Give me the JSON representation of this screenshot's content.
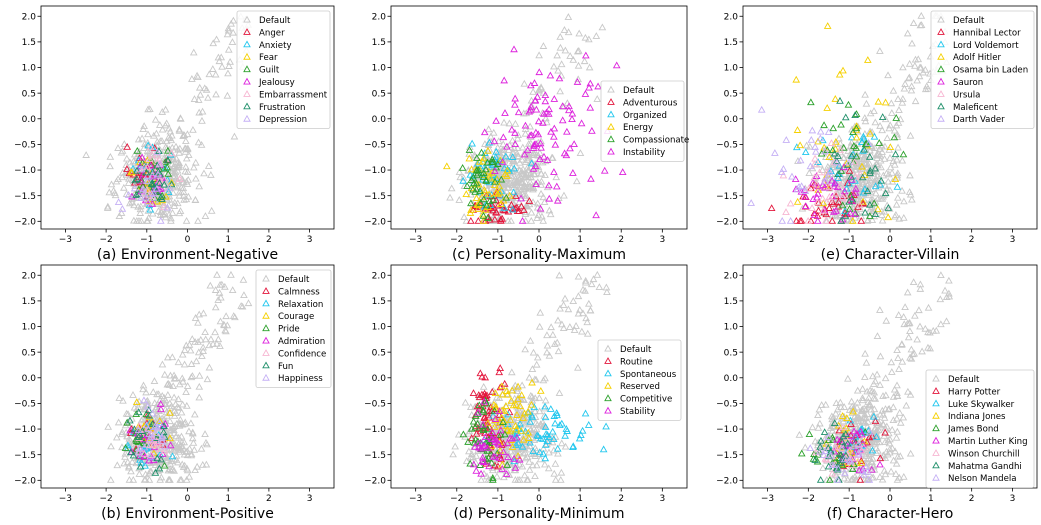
{
  "colors": {
    "Default": "#c8c8c8",
    "red": "#e3173d",
    "cyan": "#22c7ee",
    "yellow": "#f5d000",
    "green": "#2aa02a",
    "magenta": "#dd22dd",
    "pink": "#f7b6d2",
    "teal": "#1f8f6a",
    "lavender": "#c5b0f5"
  },
  "chart_data": [
    {
      "type": "scatter",
      "caption": "(a) Environment-Negative",
      "xlim": [
        -3.6,
        3.6
      ],
      "ylim": [
        -2.15,
        2.2
      ],
      "xticks": [
        -3,
        -2,
        -1,
        0,
        1,
        2,
        3
      ],
      "yticks": [
        -2.0,
        -1.5,
        -1.0,
        -0.5,
        0.0,
        0.5,
        1.0,
        1.5,
        2.0
      ],
      "legend_position": "top-right",
      "series": [
        {
          "name": "Default",
          "color": "Default",
          "count": 420,
          "cx": -0.75,
          "cy": -1.2,
          "sx": 0.5,
          "sy": 0.45
        },
        {
          "name": "Anger",
          "color": "red",
          "count": 22,
          "cx": -1.05,
          "cy": -1.15,
          "sx": 0.22,
          "sy": 0.3
        },
        {
          "name": "Anxiety",
          "color": "cyan",
          "count": 22,
          "cx": -0.95,
          "cy": -1.15,
          "sx": 0.22,
          "sy": 0.3
        },
        {
          "name": "Fear",
          "color": "yellow",
          "count": 22,
          "cx": -0.95,
          "cy": -1.2,
          "sx": 0.22,
          "sy": 0.3
        },
        {
          "name": "Guilt",
          "color": "green",
          "count": 22,
          "cx": -0.85,
          "cy": -1.1,
          "sx": 0.22,
          "sy": 0.3
        },
        {
          "name": "Jealousy",
          "color": "magenta",
          "count": 22,
          "cx": -0.9,
          "cy": -1.15,
          "sx": 0.22,
          "sy": 0.3
        },
        {
          "name": "Embarrassment",
          "color": "pink",
          "count": 22,
          "cx": -0.8,
          "cy": -1.1,
          "sx": 0.22,
          "sy": 0.3
        },
        {
          "name": "Frustration",
          "color": "teal",
          "count": 22,
          "cx": -0.85,
          "cy": -1.2,
          "sx": 0.22,
          "sy": 0.3
        },
        {
          "name": "Depression",
          "color": "lavender",
          "count": 22,
          "cx": -0.95,
          "cy": -1.3,
          "sx": 0.22,
          "sy": 0.3
        }
      ]
    },
    {
      "type": "scatter",
      "caption": "(c) Personality-Maximum",
      "xlim": [
        -3.6,
        3.6
      ],
      "ylim": [
        -2.15,
        2.2
      ],
      "xticks": [
        -3,
        -2,
        -1,
        0,
        1,
        2,
        3
      ],
      "yticks": [
        -2.0,
        -1.5,
        -1.0,
        -0.5,
        0.0,
        0.5,
        1.0,
        1.5,
        2.0
      ],
      "legend_position": "center-right",
      "series": [
        {
          "name": "Default",
          "color": "Default",
          "count": 420,
          "cx": -0.75,
          "cy": -1.2,
          "sx": 0.5,
          "sy": 0.45
        },
        {
          "name": "Adventurous",
          "color": "red",
          "count": 45,
          "cx": -1.0,
          "cy": -1.75,
          "sx": 0.35,
          "sy": 0.15
        },
        {
          "name": "Organized",
          "color": "cyan",
          "count": 45,
          "cx": -1.2,
          "cy": -1.05,
          "sx": 0.3,
          "sy": 0.3
        },
        {
          "name": "Energy",
          "color": "yellow",
          "count": 45,
          "cx": -1.3,
          "cy": -1.35,
          "sx": 0.3,
          "sy": 0.35
        },
        {
          "name": "Compassionate",
          "color": "green",
          "count": 40,
          "cx": -1.3,
          "cy": -1.3,
          "sx": 0.3,
          "sy": 0.35
        },
        {
          "name": "Instability",
          "color": "magenta",
          "count": 95,
          "cx": 0.0,
          "cy": -0.35,
          "sx": 0.75,
          "sy": 0.7
        }
      ]
    },
    {
      "type": "scatter",
      "caption": "(e) Character-Villain",
      "xlim": [
        -3.6,
        3.6
      ],
      "ylim": [
        -2.15,
        2.2
      ],
      "xticks": [
        -3,
        -2,
        -1,
        0,
        1,
        2,
        3
      ],
      "yticks": [
        -2.0,
        -1.5,
        -1.0,
        -0.5,
        0.0,
        0.5,
        1.0,
        1.5,
        2.0
      ],
      "legend_position": "top-right",
      "series": [
        {
          "name": "Default",
          "color": "Default",
          "count": 420,
          "cx": -0.75,
          "cy": -1.2,
          "sx": 0.5,
          "sy": 0.45
        },
        {
          "name": "Hannibal Lector",
          "color": "red",
          "count": 40,
          "cx": -1.5,
          "cy": -1.75,
          "sx": 0.5,
          "sy": 0.25
        },
        {
          "name": "Lord Voldemort",
          "color": "cyan",
          "count": 28,
          "cx": -0.9,
          "cy": -1.0,
          "sx": 0.55,
          "sy": 0.5
        },
        {
          "name": "Adolf Hitler",
          "color": "yellow",
          "count": 35,
          "cx": -1.0,
          "cy": -0.2,
          "sx": 0.7,
          "sy": 0.8
        },
        {
          "name": "Osama bin Laden",
          "color": "green",
          "count": 30,
          "cx": -0.9,
          "cy": -0.6,
          "sx": 0.6,
          "sy": 0.6
        },
        {
          "name": "Sauron",
          "color": "magenta",
          "count": 35,
          "cx": -1.5,
          "cy": -1.5,
          "sx": 0.5,
          "sy": 0.35
        },
        {
          "name": "Ursula",
          "color": "pink",
          "count": 30,
          "cx": -1.6,
          "cy": -1.3,
          "sx": 0.5,
          "sy": 0.4
        },
        {
          "name": "Maleficent",
          "color": "teal",
          "count": 28,
          "cx": -0.8,
          "cy": -0.9,
          "sx": 0.5,
          "sy": 0.5
        },
        {
          "name": "Darth Vader",
          "color": "lavender",
          "count": 30,
          "cx": -1.9,
          "cy": -0.8,
          "sx": 0.6,
          "sy": 0.5
        }
      ]
    },
    {
      "type": "scatter",
      "caption": "(b) Environment-Positive",
      "xlim": [
        -3.6,
        3.6
      ],
      "ylim": [
        -2.15,
        2.2
      ],
      "xticks": [
        -3,
        -2,
        -1,
        0,
        1,
        2,
        3
      ],
      "yticks": [
        -2.0,
        -1.5,
        -1.0,
        -0.5,
        0.0,
        0.5,
        1.0,
        1.5,
        2.0
      ],
      "legend_position": "top-right",
      "series": [
        {
          "name": "Default",
          "color": "Default",
          "count": 420,
          "cx": -0.75,
          "cy": -1.2,
          "sx": 0.5,
          "sy": 0.45
        },
        {
          "name": "Calmness",
          "color": "red",
          "count": 22,
          "cx": -0.95,
          "cy": -1.2,
          "sx": 0.22,
          "sy": 0.25
        },
        {
          "name": "Relaxation",
          "color": "cyan",
          "count": 22,
          "cx": -1.0,
          "cy": -1.2,
          "sx": 0.22,
          "sy": 0.25
        },
        {
          "name": "Courage",
          "color": "yellow",
          "count": 22,
          "cx": -0.85,
          "cy": -1.05,
          "sx": 0.22,
          "sy": 0.25
        },
        {
          "name": "Pride",
          "color": "green",
          "count": 22,
          "cx": -1.0,
          "cy": -1.15,
          "sx": 0.22,
          "sy": 0.25
        },
        {
          "name": "Admiration",
          "color": "magenta",
          "count": 22,
          "cx": -0.95,
          "cy": -1.2,
          "sx": 0.22,
          "sy": 0.25
        },
        {
          "name": "Confidence",
          "color": "pink",
          "count": 22,
          "cx": -0.9,
          "cy": -1.15,
          "sx": 0.22,
          "sy": 0.25
        },
        {
          "name": "Fun",
          "color": "teal",
          "count": 22,
          "cx": -0.95,
          "cy": -1.2,
          "sx": 0.22,
          "sy": 0.25
        },
        {
          "name": "Happiness",
          "color": "lavender",
          "count": 22,
          "cx": -0.9,
          "cy": -1.2,
          "sx": 0.22,
          "sy": 0.25
        }
      ]
    },
    {
      "type": "scatter",
      "caption": "(d) Personality-Minimum",
      "xlim": [
        -3.6,
        3.6
      ],
      "ylim": [
        -2.15,
        2.2
      ],
      "xticks": [
        -3,
        -2,
        -1,
        0,
        1,
        2,
        3
      ],
      "yticks": [
        -2.0,
        -1.5,
        -1.0,
        -0.5,
        0.0,
        0.5,
        1.0,
        1.5,
        2.0
      ],
      "legend_position": "center-right",
      "series": [
        {
          "name": "Default",
          "color": "Default",
          "count": 420,
          "cx": -0.75,
          "cy": -1.2,
          "sx": 0.5,
          "sy": 0.45
        },
        {
          "name": "Routine",
          "color": "red",
          "count": 60,
          "cx": -1.2,
          "cy": -0.7,
          "sx": 0.25,
          "sy": 0.45
        },
        {
          "name": "Spontaneous",
          "color": "cyan",
          "count": 60,
          "cx": 0.2,
          "cy": -1.05,
          "sx": 0.6,
          "sy": 0.25
        },
        {
          "name": "Reserved",
          "color": "yellow",
          "count": 50,
          "cx": -0.7,
          "cy": -0.75,
          "sx": 0.3,
          "sy": 0.35
        },
        {
          "name": "Competitive",
          "color": "green",
          "count": 45,
          "cx": -1.3,
          "cy": -1.15,
          "sx": 0.25,
          "sy": 0.35
        },
        {
          "name": "Stability",
          "color": "magenta",
          "count": 45,
          "cx": -1.1,
          "cy": -1.3,
          "sx": 0.28,
          "sy": 0.35
        }
      ]
    },
    {
      "type": "scatter",
      "caption": "(f) Character-Hero",
      "xlim": [
        -3.6,
        3.6
      ],
      "ylim": [
        -2.15,
        2.2
      ],
      "xticks": [
        -3,
        -2,
        -1,
        0,
        1,
        2,
        3
      ],
      "yticks": [
        -2.0,
        -1.5,
        -1.0,
        -0.5,
        0.0,
        0.5,
        1.0,
        1.5,
        2.0
      ],
      "legend_position": "bottom-right",
      "series": [
        {
          "name": "Default",
          "color": "Default",
          "count": 420,
          "cx": -0.75,
          "cy": -1.2,
          "sx": 0.5,
          "sy": 0.45
        },
        {
          "name": "Harry Potter",
          "color": "red",
          "count": 25,
          "cx": -0.75,
          "cy": -1.3,
          "sx": 0.3,
          "sy": 0.25
        },
        {
          "name": "Luke Skywalker",
          "color": "cyan",
          "count": 25,
          "cx": -0.8,
          "cy": -1.2,
          "sx": 0.3,
          "sy": 0.25
        },
        {
          "name": "Indiana Jones",
          "color": "yellow",
          "count": 25,
          "cx": -1.0,
          "cy": -1.35,
          "sx": 0.3,
          "sy": 0.25
        },
        {
          "name": "James Bond",
          "color": "green",
          "count": 25,
          "cx": -1.35,
          "cy": -1.5,
          "sx": 0.3,
          "sy": 0.25
        },
        {
          "name": "Martin Luther King",
          "color": "magenta",
          "count": 25,
          "cx": -0.9,
          "cy": -1.45,
          "sx": 0.3,
          "sy": 0.25
        },
        {
          "name": "Winson Churchill",
          "color": "pink",
          "count": 25,
          "cx": -1.1,
          "cy": -1.5,
          "sx": 0.3,
          "sy": 0.25
        },
        {
          "name": "Mahatma Gandhi",
          "color": "teal",
          "count": 25,
          "cx": -1.3,
          "cy": -1.55,
          "sx": 0.3,
          "sy": 0.25
        },
        {
          "name": "Nelson Mandela",
          "color": "lavender",
          "count": 25,
          "cx": -1.05,
          "cy": -1.6,
          "sx": 0.3,
          "sy": 0.25
        }
      ]
    }
  ]
}
